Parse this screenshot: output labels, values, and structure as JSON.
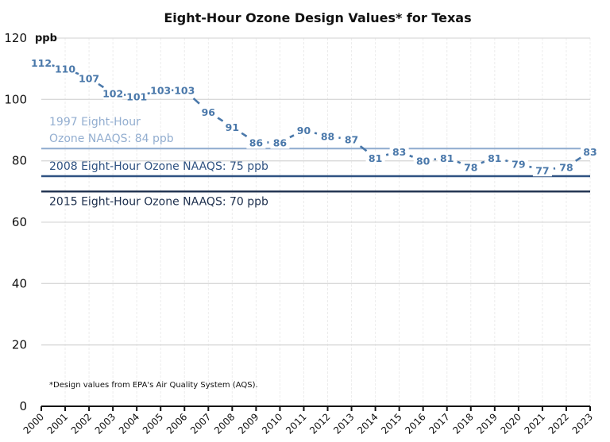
{
  "chart_data": {
    "type": "line",
    "title": "Eight-Hour Ozone Design Values* for Texas",
    "ylabel": "ppb",
    "xlabel": "",
    "ylim": [
      0,
      120
    ],
    "yticks": [
      0,
      20,
      40,
      60,
      80,
      100,
      120
    ],
    "grid": true,
    "categories": [
      "2000",
      "2001",
      "2002",
      "2003",
      "2004",
      "2005",
      "2006",
      "2007",
      "2008",
      "2009",
      "2010",
      "2011",
      "2012",
      "2013",
      "2014",
      "2015",
      "2016",
      "2017",
      "2018",
      "2019",
      "2020",
      "2021",
      "2022",
      "2023"
    ],
    "series": [
      {
        "name": "Eight-Hour Ozone Design Value",
        "values": [
          112,
          110,
          107,
          102,
          101,
          103,
          103,
          96,
          91,
          86,
          86,
          90,
          88,
          87,
          81,
          83,
          80,
          81,
          78,
          81,
          79,
          77,
          78,
          83
        ],
        "color": "#4a78aa",
        "style": "dashed"
      }
    ],
    "reference_lines": [
      {
        "label_lines": [
          "1997 Eight-Hour",
          "Ozone NAAQS: 84 ppb"
        ],
        "value": 84,
        "color": "#93aed0"
      },
      {
        "label_lines": [
          "2008 Eight-Hour Ozone NAAQS: 75 ppb"
        ],
        "value": 75,
        "color": "#2f5282"
      },
      {
        "label_lines": [
          "2015 Eight-Hour Ozone NAAQS: 70 ppb"
        ],
        "value": 70,
        "color": "#1d2f4d"
      }
    ],
    "footnote": "*Design values from EPA's Air Quality System (AQS)."
  }
}
